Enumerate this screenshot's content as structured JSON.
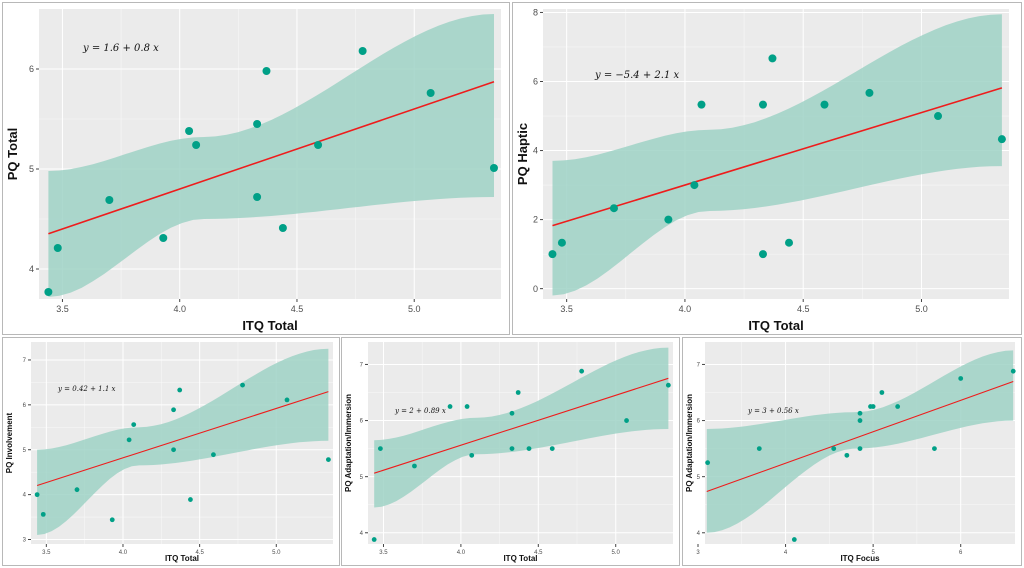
{
  "colors": {
    "background": "#ebebeb",
    "grid": "#ffffff",
    "band": "#9fd2c6",
    "point": "#00a087",
    "line": "#ee1c1c"
  },
  "chart_data": [
    {
      "type": "scatter",
      "title": "",
      "equation": "y = 1.6 + 0.8 x",
      "xlabel": "ITQ Total",
      "ylabel": "PQ Total",
      "xlim": [
        3.4,
        5.37
      ],
      "ylim": [
        3.7,
        6.6
      ],
      "xticks": [
        3.5,
        4.0,
        4.5,
        5.0
      ],
      "xtick_labels": [
        "3.5",
        "4.0",
        "4.5",
        "5.0"
      ],
      "yticks": [
        4,
        5,
        6
      ],
      "ytick_labels": [
        "4",
        "5",
        "6"
      ],
      "fit": {
        "intercept": 1.6,
        "slope": 0.8
      },
      "band": {
        "x": [
          3.44,
          4.1,
          5.34
        ],
        "lower": [
          3.72,
          4.5,
          4.72
        ],
        "upper": [
          4.98,
          5.32,
          6.55
        ]
      },
      "x": [
        3.44,
        3.48,
        3.7,
        3.93,
        4.04,
        4.07,
        4.33,
        4.33,
        4.37,
        4.44,
        4.59,
        4.78,
        5.07,
        5.34
      ],
      "y": [
        3.77,
        4.21,
        4.69,
        4.31,
        5.38,
        5.24,
        4.72,
        5.45,
        5.98,
        4.41,
        5.24,
        6.18,
        5.76,
        5.01
      ]
    },
    {
      "type": "scatter",
      "title": "",
      "equation": "y = −5.4 + 2.1 x",
      "xlabel": "ITQ Total",
      "ylabel": "PQ Haptic",
      "xlim": [
        3.4,
        5.37
      ],
      "ylim": [
        -0.3,
        8.1
      ],
      "xticks": [
        3.5,
        4.0,
        4.5,
        5.0
      ],
      "xtick_labels": [
        "3.5",
        "4.0",
        "4.5",
        "5.0"
      ],
      "yticks": [
        0,
        2,
        4,
        6,
        8
      ],
      "ytick_labels": [
        "0",
        "2",
        "4",
        "6",
        "8"
      ],
      "fit": {
        "intercept": -5.4,
        "slope": 2.1
      },
      "band": {
        "x": [
          3.44,
          4.1,
          5.34
        ],
        "lower": [
          -0.2,
          2.25,
          3.55
        ],
        "upper": [
          3.7,
          4.6,
          7.95
        ]
      },
      "x": [
        3.44,
        3.48,
        3.7,
        3.93,
        4.04,
        4.07,
        4.33,
        4.33,
        4.37,
        4.44,
        4.59,
        4.78,
        5.07,
        5.34
      ],
      "y": [
        1.0,
        1.33,
        2.33,
        2.0,
        3.0,
        5.33,
        1.0,
        5.33,
        6.67,
        1.33,
        5.33,
        5.67,
        5.0,
        4.33
      ]
    },
    {
      "type": "scatter",
      "title": "",
      "equation": "y = 0.42 + 1.1 x",
      "xlabel": "ITQ Total",
      "ylabel": "PQ Involvement",
      "xlim": [
        3.4,
        5.37
      ],
      "ylim": [
        2.9,
        7.4
      ],
      "xticks": [
        3.5,
        4.0,
        4.5,
        5.0
      ],
      "xtick_labels": [
        "3.5",
        "4.0",
        "4.5",
        "5.0"
      ],
      "yticks": [
        3,
        4,
        5,
        6,
        7
      ],
      "ytick_labels": [
        "3",
        "4",
        "5",
        "6",
        "7"
      ],
      "fit": {
        "intercept": 0.42,
        "slope": 1.1
      },
      "band": {
        "x": [
          3.44,
          4.1,
          5.34
        ],
        "lower": [
          3.1,
          4.65,
          5.2
        ],
        "upper": [
          5.0,
          5.5,
          7.25
        ]
      },
      "x": [
        3.44,
        3.48,
        3.7,
        3.93,
        4.04,
        4.07,
        4.33,
        4.33,
        4.37,
        4.44,
        4.59,
        4.78,
        5.07,
        5.34
      ],
      "y": [
        4.0,
        3.56,
        4.11,
        3.44,
        5.22,
        5.56,
        5.89,
        5.0,
        6.33,
        3.89,
        4.89,
        6.44,
        6.11,
        4.78
      ]
    },
    {
      "type": "scatter",
      "title": "",
      "equation": "y = 2 + 0.89 x",
      "xlabel": "ITQ Total",
      "ylabel": "PQ Adaptation/Immersion",
      "xlim": [
        3.4,
        5.37
      ],
      "ylim": [
        3.8,
        7.4
      ],
      "xticks": [
        3.5,
        4.0,
        4.5,
        5.0
      ],
      "xtick_labels": [
        "3.5",
        "4.0",
        "4.5",
        "5.0"
      ],
      "yticks": [
        4,
        5,
        6,
        7
      ],
      "ytick_labels": [
        "4",
        "5",
        "6",
        "7"
      ],
      "fit": {
        "intercept": 2.0,
        "slope": 0.89
      },
      "band": {
        "x": [
          3.44,
          4.1,
          5.34
        ],
        "lower": [
          4.45,
          5.4,
          5.85
        ],
        "upper": [
          5.65,
          6.05,
          7.3
        ]
      },
      "x": [
        3.44,
        3.48,
        3.7,
        3.93,
        4.04,
        4.07,
        4.33,
        4.33,
        4.37,
        4.44,
        4.59,
        4.78,
        5.07,
        5.34
      ],
      "y": [
        3.88,
        5.5,
        5.19,
        6.25,
        6.25,
        5.38,
        6.13,
        5.5,
        6.5,
        5.5,
        5.5,
        6.88,
        6.0,
        6.63
      ]
    },
    {
      "type": "scatter",
      "title": "",
      "equation": "y = 3 + 0.56 x",
      "xlabel": "ITQ Focus",
      "ylabel": "PQ Adaptation/Immersion",
      "xlim": [
        3.08,
        6.62
      ],
      "ylim": [
        3.8,
        7.4
      ],
      "xticks": [
        3,
        4,
        5,
        6
      ],
      "xtick_labels": [
        "3",
        "4",
        "5",
        "6"
      ],
      "yticks": [
        4,
        5,
        6,
        7
      ],
      "ytick_labels": [
        "4",
        "5",
        "6",
        "7"
      ],
      "fit": {
        "intercept": 3.0,
        "slope": 0.56
      },
      "band": {
        "x": [
          3.1,
          4.8,
          6.6
        ],
        "lower": [
          4.0,
          5.5,
          6.0
        ],
        "upper": [
          5.85,
          6.15,
          7.25
        ]
      },
      "x": [
        3.11,
        3.7,
        4.1,
        4.55,
        4.7,
        4.85,
        4.85,
        4.85,
        4.97,
        5.0,
        5.1,
        5.28,
        5.7,
        6.0,
        6.6
      ],
      "y": [
        5.25,
        5.5,
        3.88,
        5.5,
        5.38,
        5.5,
        6.0,
        6.13,
        6.25,
        6.25,
        6.5,
        6.25,
        5.5,
        6.75,
        6.88
      ]
    }
  ]
}
